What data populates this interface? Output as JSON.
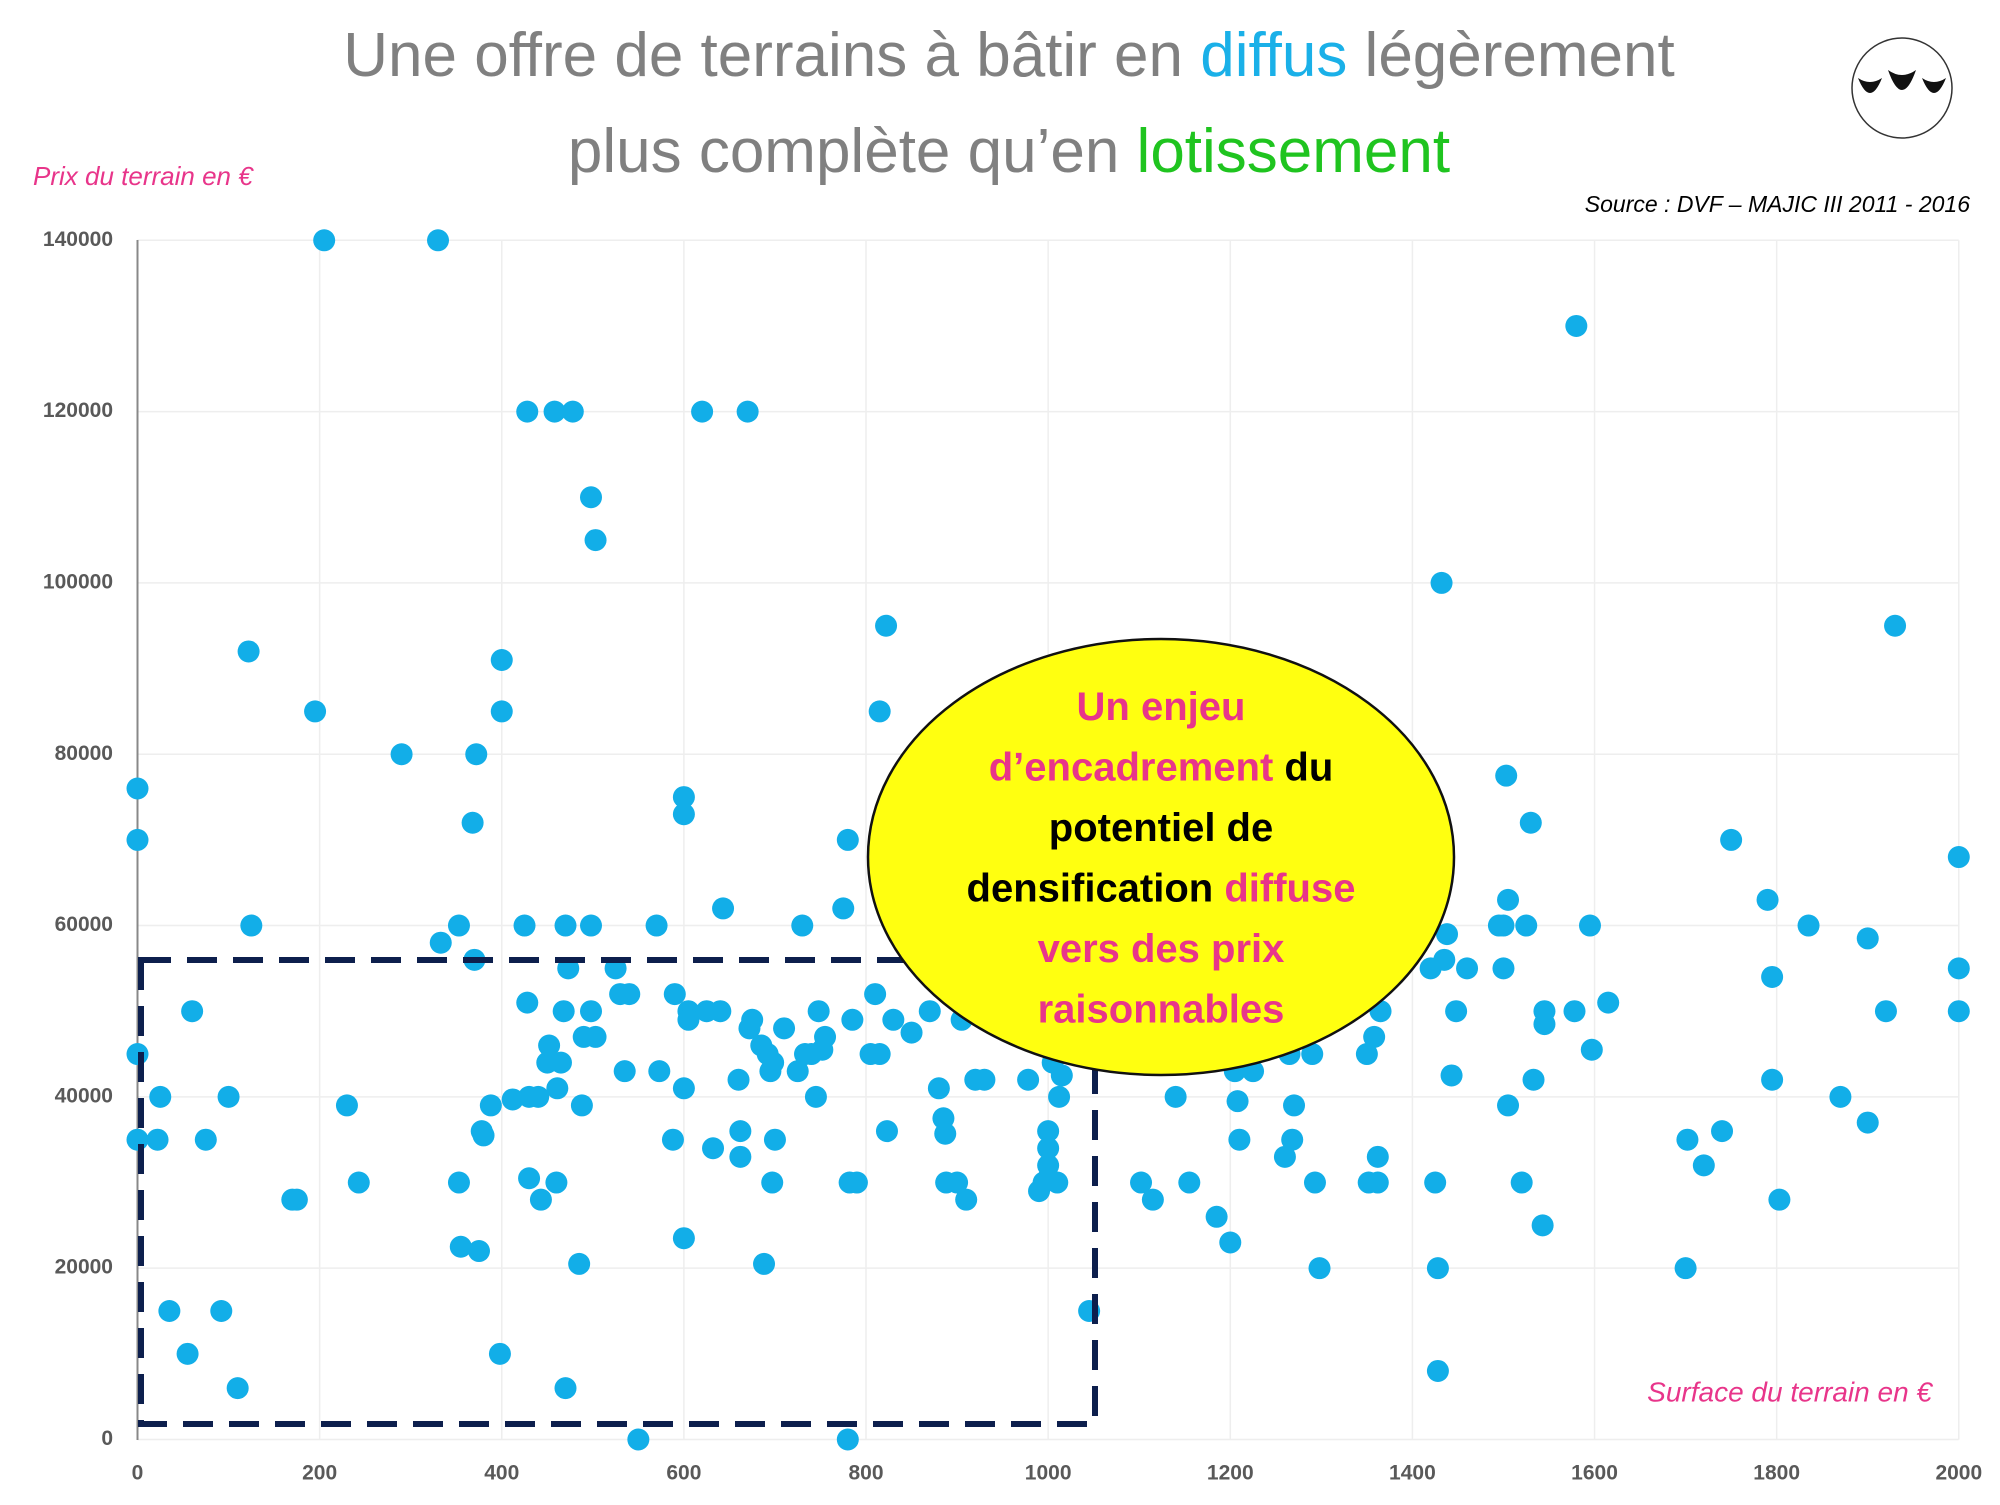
{
  "chart_data": {
    "type": "scatter",
    "title": [
      [
        {
          "text": "Une offre de terrains à bâtir en ",
          "color": "#808080"
        },
        {
          "text": "diffus",
          "color": "#1ab0e8"
        },
        {
          "text": " légèrement",
          "color": "#808080"
        }
      ],
      [
        {
          "text": "plus complète qu’en ",
          "color": "#808080"
        },
        {
          "text": "lotissement",
          "color": "#1fc41f"
        }
      ]
    ],
    "source": "Source : DVF – MAJIC III 2011 - 2016",
    "ylabel": "Prix du terrain en €",
    "xlabel": "Surface du terrain en €",
    "annotation": [
      [
        {
          "text": "Un enjeu",
          "color": "#e8358a"
        }
      ],
      [
        {
          "text": "d’encadrement",
          "color": "#e8358a"
        },
        {
          "text": " du",
          "color": "#000000"
        }
      ],
      [
        {
          "text": "potentiel de",
          "color": "#000000"
        }
      ],
      [
        {
          "text": "densification ",
          "color": "#000000"
        },
        {
          "text": "diffuse",
          "color": "#e8358a"
        }
      ],
      [
        {
          "text": "vers des prix",
          "color": "#e8358a"
        }
      ],
      [
        {
          "text": "raisonnables",
          "color": "#e8358a"
        }
      ]
    ],
    "color": "#12aee8",
    "grid": true,
    "xlim": [
      0,
      2000
    ],
    "ylim": [
      0,
      140000
    ],
    "xticks": [
      0,
      200,
      400,
      600,
      800,
      1000,
      1200,
      1400,
      1600,
      1800,
      2000
    ],
    "yticks": [
      0,
      20000,
      40000,
      60000,
      80000,
      100000,
      120000,
      140000
    ],
    "x": [
      0,
      0,
      0,
      0,
      25,
      22,
      35,
      55,
      60,
      75,
      92,
      100,
      110,
      122,
      125,
      170,
      175,
      195,
      205,
      230,
      243,
      290,
      330,
      333,
      353,
      353,
      355,
      368,
      370,
      372,
      375,
      378,
      380,
      388,
      398,
      400,
      400,
      412,
      425,
      428,
      428,
      430,
      430,
      440,
      443,
      450,
      452,
      458,
      460,
      461,
      465,
      468,
      470,
      470,
      473,
      478,
      485,
      488,
      490,
      498,
      498,
      498,
      503,
      503,
      525,
      530,
      535,
      540,
      550,
      570,
      573,
      588,
      590,
      600,
      600,
      600,
      600,
      605,
      605,
      620,
      625,
      632,
      640,
      643,
      660,
      662,
      662,
      670,
      672,
      675,
      685,
      688,
      692,
      695,
      697,
      698,
      700,
      710,
      725,
      730,
      733,
      740,
      745,
      748,
      752,
      755,
      775,
      780,
      780,
      782,
      785,
      790,
      805,
      810,
      815,
      815,
      822,
      823,
      830,
      850,
      870,
      880,
      885,
      887,
      888,
      900,
      905,
      910,
      920,
      930,
      978,
      990,
      995,
      1000,
      1000,
      1000,
      1000,
      1005,
      1010,
      1012,
      1015,
      1045,
      1102,
      1115,
      1140,
      1155,
      1185,
      1200,
      1205,
      1208,
      1210,
      1225,
      1260,
      1265,
      1268,
      1270,
      1290,
      1293,
      1298,
      1350,
      1352,
      1358,
      1362,
      1362,
      1365,
      1420,
      1425,
      1428,
      1428,
      1432,
      1435,
      1438,
      1443,
      1448,
      1460,
      1495,
      1500,
      1500,
      1503,
      1505,
      1505,
      1520,
      1525,
      1530,
      1533,
      1543,
      1545,
      1545,
      1578,
      1580,
      1595,
      1597,
      1615,
      1700,
      1702,
      1720,
      1740,
      1750,
      1790,
      1795,
      1795,
      1803,
      1835,
      1870,
      1900,
      1900,
      1920,
      1930,
      2000,
      2000,
      2000
    ],
    "values": [
      76000,
      70000,
      45000,
      35000,
      40000,
      35000,
      15000,
      10000,
      50000,
      35000,
      15000,
      40000,
      6000,
      92000,
      60000,
      28000,
      28000,
      85000,
      140000,
      39000,
      30000,
      80000,
      140000,
      58000,
      60000,
      30000,
      22500,
      72000,
      56000,
      80000,
      22000,
      36000,
      35500,
      39000,
      10000,
      85000,
      91000,
      39700,
      60000,
      51000,
      120000,
      40000,
      30500,
      40000,
      28000,
      44000,
      46000,
      120000,
      30000,
      41000,
      44000,
      50000,
      6000,
      60000,
      55000,
      120000,
      20500,
      39000,
      47000,
      60000,
      50000,
      110000,
      105000,
      47000,
      55000,
      52000,
      43000,
      52000,
      0,
      60000,
      43000,
      35000,
      52000,
      75000,
      73000,
      41000,
      23500,
      50000,
      49000,
      120000,
      50000,
      34000,
      50000,
      62000,
      42000,
      36000,
      33000,
      120000,
      48000,
      49000,
      46000,
      20500,
      45000,
      43000,
      30000,
      44000,
      35000,
      48000,
      43000,
      60000,
      45000,
      45000,
      40000,
      50000,
      45500,
      47000,
      62000,
      70000,
      0,
      30000,
      49000,
      30000,
      45000,
      52000,
      85000,
      45000,
      95000,
      36000,
      49000,
      47500,
      50000,
      41000,
      37500,
      35700,
      30000,
      30000,
      49000,
      28000,
      42000,
      42000,
      42000,
      29000,
      30000,
      36000,
      34000,
      32000,
      30500,
      44000,
      30000,
      40000,
      42500,
      15000,
      30000,
      28000,
      40000,
      30000,
      26000,
      23000,
      43000,
      39500,
      35000,
      43000,
      33000,
      45000,
      35000,
      39000,
      45000,
      30000,
      20000,
      45000,
      30000,
      47000,
      33000,
      30000,
      50000,
      55000,
      30000,
      20000,
      8000,
      100000,
      56000,
      59000,
      42500,
      50000,
      55000,
      60000,
      60000,
      55000,
      77500,
      63000,
      39000,
      30000,
      60000,
      72000,
      42000,
      25000,
      48500,
      50000,
      50000,
      130000,
      60000,
      45500,
      51000,
      20000,
      35000,
      32000,
      36000,
      70000,
      63000,
      54000,
      42000,
      28000,
      60000,
      40000,
      58500,
      37000,
      50000,
      95000,
      68000,
      55000,
      50000
    ]
  }
}
